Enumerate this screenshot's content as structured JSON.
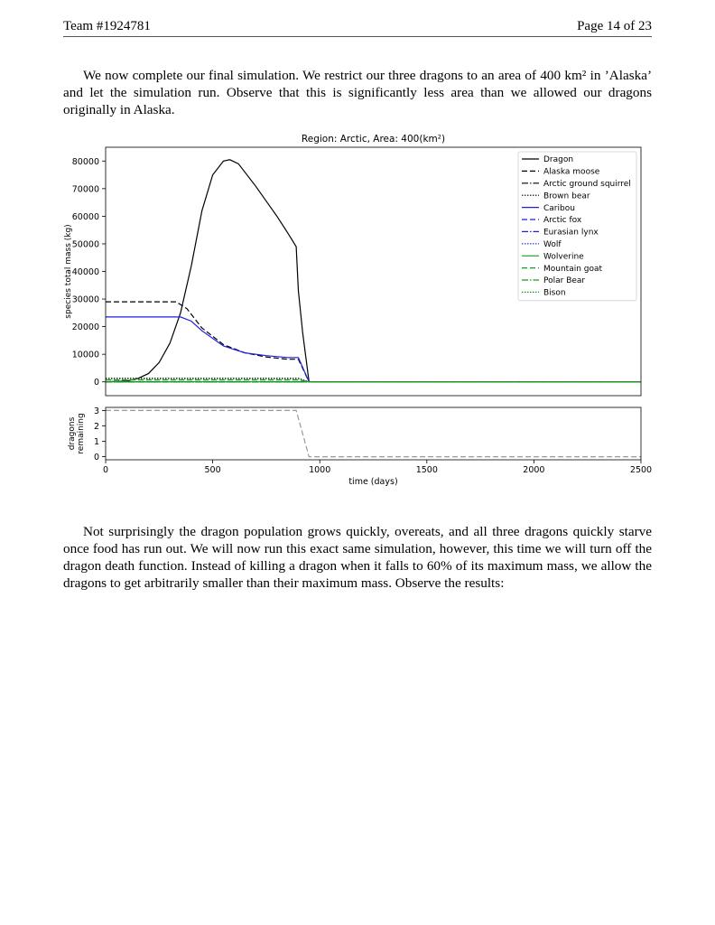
{
  "header": {
    "team": "Team #1924781",
    "page": "Page 14 of 23"
  },
  "paragraphs": {
    "p1": "We now complete our final simulation. We restrict our three dragons to an area of 400 km² in ’Alaska’ and let the simulation run. Observe that this is significantly less area than we allowed our dragons originally in Alaska.",
    "p2": "Not surprisingly the dragon population grows quickly, overeats, and all three dragons quickly starve once food has run out. We will now run this exact same simulation, however, this time we will turn off the dragon death function. Instead of killing a dragon when it falls to 60% of its maximum mass, we allow the dragons to get arbitrarily smaller than their maximum mass. Observe the results:"
  },
  "chart_data": [
    {
      "type": "line",
      "title": "Region: Arctic, Area: 400(km²)",
      "xlabel": "",
      "ylabel": "species total mass (kg)",
      "xlim": [
        0,
        2500
      ],
      "ylim": [
        -5000,
        85000
      ],
      "yticks": [
        0,
        10000,
        20000,
        30000,
        40000,
        50000,
        60000,
        70000,
        80000
      ],
      "grid": false,
      "legend_position": "top-right",
      "series": [
        {
          "name": "Dragon",
          "color": "#000000",
          "dash": "solid",
          "x": [
            0,
            100,
            150,
            200,
            250,
            300,
            350,
            400,
            450,
            500,
            550,
            580,
            620,
            700,
            800,
            850,
            890,
            900,
            920,
            950,
            2500
          ],
          "y": [
            0,
            300,
            1200,
            3000,
            7000,
            14000,
            25000,
            42000,
            62000,
            75000,
            80000,
            80500,
            79000,
            71000,
            60000,
            54000,
            49000,
            33000,
            18000,
            0,
            0
          ]
        },
        {
          "name": "Alaska moose",
          "color": "#000000",
          "dash": "6,3",
          "x": [
            0,
            330,
            380,
            450,
            550,
            650,
            750,
            850,
            900,
            950,
            2500
          ],
          "y": [
            29000,
            29000,
            26500,
            19500,
            13500,
            10500,
            9000,
            8200,
            8200,
            0,
            0
          ]
        },
        {
          "name": "Arctic ground squirrel",
          "color": "#000000",
          "dash": "7,2,1.5,2",
          "x": [
            0,
            900,
            950,
            2500
          ],
          "y": [
            0,
            0,
            0,
            0
          ]
        },
        {
          "name": "Brown bear",
          "color": "#000000",
          "dash": "1.5,1.5",
          "x": [
            0,
            900,
            950,
            2500
          ],
          "y": [
            1300,
            1300,
            0,
            0
          ]
        },
        {
          "name": "Caribou",
          "color": "#1f1fe0",
          "dash": "solid",
          "x": [
            0,
            350,
            400,
            450,
            550,
            650,
            750,
            850,
            900,
            950,
            2500
          ],
          "y": [
            23500,
            23500,
            22000,
            18500,
            13000,
            10500,
            9500,
            8800,
            8800,
            0,
            0
          ]
        },
        {
          "name": "Arctic fox",
          "color": "#1f1fe0",
          "dash": "6,3",
          "x": [
            0,
            2500
          ],
          "y": [
            0,
            0
          ]
        },
        {
          "name": "Eurasian lynx",
          "color": "#1f1fe0",
          "dash": "7,2,1.5,2",
          "x": [
            0,
            2500
          ],
          "y": [
            0,
            0
          ]
        },
        {
          "name": "Wolf",
          "color": "#1f1fe0",
          "dash": "1.5,1.5",
          "x": [
            0,
            2500
          ],
          "y": [
            0,
            0
          ]
        },
        {
          "name": "Wolverine",
          "color": "#1a9a1a",
          "dash": "solid",
          "x": [
            0,
            2500
          ],
          "y": [
            0,
            0
          ]
        },
        {
          "name": "Mountain goat",
          "color": "#1a9a1a",
          "dash": "6,3",
          "x": [
            0,
            900,
            950,
            2500
          ],
          "y": [
            700,
            700,
            0,
            0
          ]
        },
        {
          "name": "Polar Bear",
          "color": "#1a9a1a",
          "dash": "7,2,1.5,2",
          "x": [
            0,
            2500
          ],
          "y": [
            0,
            0
          ]
        },
        {
          "name": "Bison",
          "color": "#1a9a1a",
          "dash": "1.5,1.5",
          "x": [
            0,
            900,
            950,
            2500
          ],
          "y": [
            1000,
            1000,
            0,
            0
          ]
        }
      ]
    },
    {
      "type": "line",
      "title": "",
      "xlabel": "time (days)",
      "ylabel": "dragons remaining",
      "xlim": [
        0,
        2500
      ],
      "ylim": [
        -0.2,
        3.2
      ],
      "yticks": [
        0,
        1,
        2,
        3
      ],
      "xticks": [
        0,
        500,
        1000,
        1500,
        2000,
        2500
      ],
      "grid": false,
      "series": [
        {
          "name": "",
          "color": "#999999",
          "dash": "6,3",
          "x": [
            0,
            890,
            950,
            2500
          ],
          "y": [
            3,
            3,
            0,
            0
          ]
        }
      ]
    }
  ]
}
